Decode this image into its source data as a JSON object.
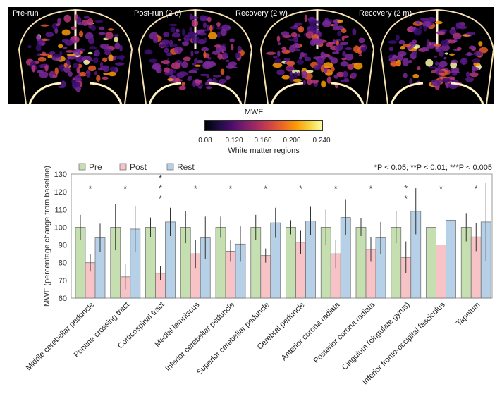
{
  "panels": [
    {
      "label": "Pre-run"
    },
    {
      "label": "Post-run (2 d)"
    },
    {
      "label": "Recovery (2 w)"
    },
    {
      "label": "Recovery (2 m)"
    }
  ],
  "colorbar": {
    "title": "MWF",
    "ticks": [
      "0.08",
      "0.120",
      "0.160",
      "0.200",
      "0.240"
    ],
    "subtitle": "White matter regions"
  },
  "chart_data": {
    "type": "bar",
    "ylabel": "MWF (percentage change from baseline)",
    "ylim": [
      60,
      130
    ],
    "yticks": [
      60,
      70,
      80,
      90,
      100,
      110,
      120,
      130
    ],
    "legend": [
      "Pre",
      "Post",
      "Rest"
    ],
    "legend_position": "top-left",
    "significance_note": "*P < 0.05; **P < 0.01; ***P < 0.005",
    "colors": {
      "Pre": "#c5dfb0",
      "Post": "#f8c3c6",
      "Rest": "#b6d0e8"
    },
    "categories": [
      "Middle cerebellar peduncle",
      "Pontine crossing tract",
      "Corticospinal tract",
      "Medial lemniscus",
      "Inferior cerebellar peduncle",
      "Superior cerebellar peduncle",
      "Cerebral peduncle",
      "Anterior corona radiata",
      "Posterior corona radiata",
      "Cingulum (cingulate gyrus)",
      "Inferior fronto-occipital fasciculus",
      "Tapetum"
    ],
    "significance": [
      "*",
      "*",
      "***",
      "*",
      "*",
      "*",
      "*",
      "*",
      "*",
      "**",
      "*",
      "*"
    ],
    "series": [
      {
        "name": "Pre",
        "values": [
          100,
          100,
          100,
          100,
          100,
          100,
          100,
          100,
          100,
          100,
          100,
          100
        ],
        "errors": [
          7,
          13,
          5.5,
          9,
          6,
          7,
          4,
          10,
          5,
          9,
          11,
          8
        ]
      },
      {
        "name": "Post",
        "values": [
          80,
          72,
          74,
          85,
          86.5,
          84,
          91.5,
          85,
          87.5,
          83,
          90,
          94.5
        ],
        "errors": [
          5,
          7,
          4,
          8,
          6,
          4,
          6.5,
          8,
          7,
          9,
          15,
          8
        ]
      },
      {
        "name": "Rest",
        "values": [
          94,
          99,
          103,
          94,
          90.5,
          102.5,
          103.5,
          105.5,
          94,
          109,
          104,
          103
        ],
        "errors": [
          8,
          13,
          8,
          12,
          10,
          8.5,
          8,
          10,
          9,
          13,
          16,
          22
        ]
      }
    ]
  }
}
